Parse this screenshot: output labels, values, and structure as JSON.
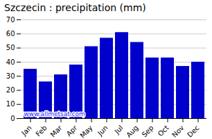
{
  "chart_data": {
    "type": "bar",
    "title": "Szczecin : precipitation (mm)",
    "categories": [
      "Jan",
      "Feb",
      "Mar",
      "Apr",
      "May",
      "Jun",
      "Jul",
      "Aug",
      "Sep",
      "Oct",
      "Nov",
      "Dec"
    ],
    "values": [
      35,
      26,
      31,
      38,
      51,
      57,
      61,
      54,
      43,
      43,
      37,
      40
    ],
    "color": "#0000CC",
    "ylim": [
      0,
      70
    ],
    "yticks": [
      0,
      10,
      20,
      30,
      40,
      50,
      60,
      70
    ],
    "grid": true,
    "annotations": [
      {
        "text": "www.allmetsat.com",
        "color": "#1a1aff"
      }
    ]
  }
}
